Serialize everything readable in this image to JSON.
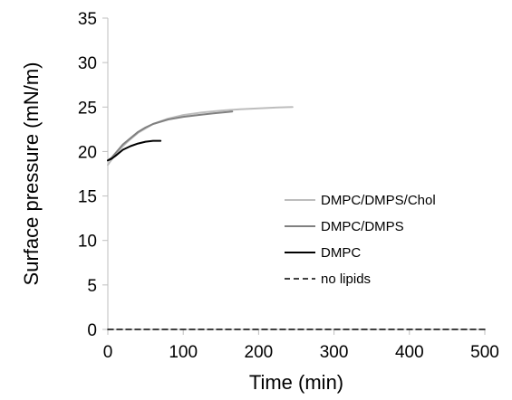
{
  "chart_data": {
    "type": "line",
    "title": "",
    "xlabel": "Time (min)",
    "ylabel": "Surface pressure (mN/m)",
    "xlim": [
      0,
      500
    ],
    "ylim": [
      0,
      35
    ],
    "xticks": [
      "0",
      "100",
      "200",
      "300",
      "400",
      "500"
    ],
    "yticks": [
      "0",
      "5",
      "10",
      "15",
      "20",
      "25",
      "30",
      "35"
    ],
    "grid": false,
    "legend_position": "center-right",
    "series": [
      {
        "name": "DMPC/DMPS/Chol",
        "color": "#bdbdbd",
        "dash": "solid",
        "x": [
          0,
          5,
          10,
          20,
          30,
          40,
          50,
          60,
          80,
          100,
          125,
          150,
          175,
          200,
          225,
          245
        ],
        "y": [
          18.5,
          19.1,
          19.7,
          20.6,
          21.4,
          22.1,
          22.6,
          23.1,
          23.7,
          24.1,
          24.4,
          24.6,
          24.75,
          24.85,
          24.95,
          25.0
        ]
      },
      {
        "name": "DMPC/DMPS",
        "color": "#808080",
        "dash": "solid",
        "x": [
          0,
          5,
          10,
          20,
          30,
          40,
          50,
          60,
          80,
          100,
          120,
          140,
          165
        ],
        "y": [
          19.0,
          19.3,
          19.8,
          20.8,
          21.5,
          22.2,
          22.7,
          23.1,
          23.6,
          23.9,
          24.1,
          24.3,
          24.5
        ]
      },
      {
        "name": "DMPC",
        "color": "#000000",
        "dash": "solid",
        "x": [
          0,
          5,
          10,
          20,
          30,
          40,
          50,
          60,
          70
        ],
        "y": [
          19.0,
          19.2,
          19.5,
          20.2,
          20.6,
          20.9,
          21.1,
          21.2,
          21.2
        ]
      },
      {
        "name": "no lipids",
        "color": "#000000",
        "dash": "dashed",
        "x": [
          0,
          100,
          200,
          300,
          400,
          500
        ],
        "y": [
          0,
          0,
          0,
          0,
          0,
          0
        ]
      }
    ]
  }
}
